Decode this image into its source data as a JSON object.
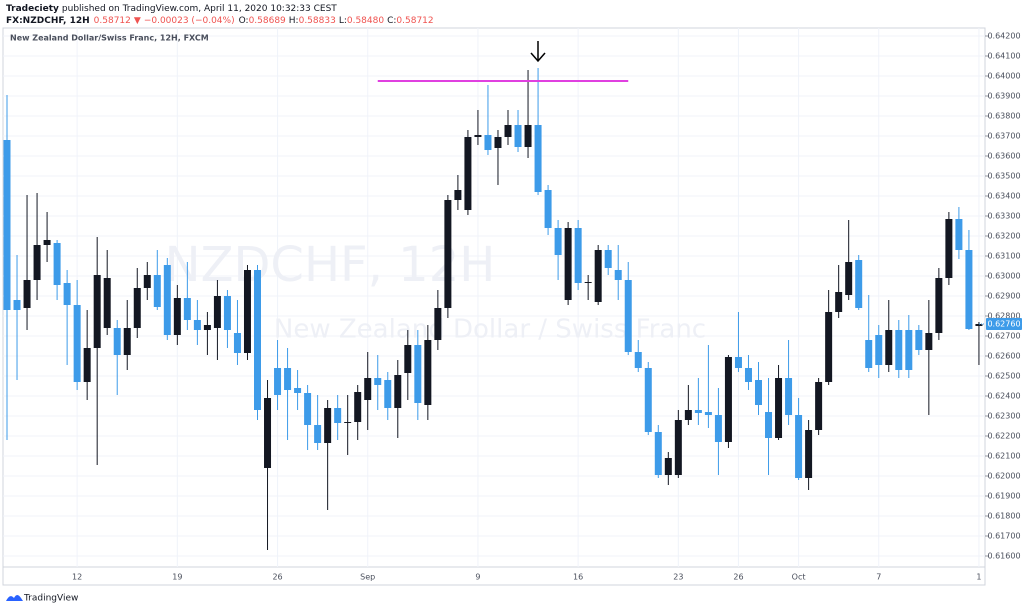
{
  "header": {
    "author": "Tradeciety",
    "published": "published on TradingView.com, April 11, 2020 10:32:33 CEST",
    "symbol": "FX:NZDCHF, 12H",
    "last": "0.58712",
    "arrow": "▼",
    "change": "−0.00023 (−0.04%)",
    "o_label": "O:",
    "o": "0.58689",
    "h_label": "H:",
    "h": "0.58833",
    "l_label": "L:",
    "l": "0.58480",
    "c_label": "C:",
    "c": "0.58712"
  },
  "footer": {
    "brand": "TradingView"
  },
  "chart_data": {
    "type": "candlestick",
    "title": "New Zealand Dollar/Swiss Franc, 12H, FXCM",
    "watermark": "NZDCHF, 12H",
    "watermark_sub": "New Zealand Dollar / Swiss Franc",
    "categories": [
      null,
      null,
      null,
      null,
      null,
      null,
      null,
      "12",
      null,
      null,
      null,
      null,
      null,
      null,
      null,
      null,
      null,
      "19",
      null,
      null,
      null,
      null,
      null,
      null,
      null,
      null,
      null,
      "26",
      null,
      null,
      null,
      null,
      null,
      null,
      null,
      null,
      "Sep",
      null,
      null,
      null,
      null,
      null,
      null,
      null,
      null,
      null,
      null,
      "9",
      null,
      null,
      null,
      null,
      null,
      null,
      null,
      null,
      null,
      "16",
      null,
      null,
      null,
      null,
      null,
      null,
      null,
      null,
      null,
      "23",
      null,
      null,
      null,
      null,
      null,
      "26",
      null,
      null,
      null,
      null,
      null,
      "Oct",
      null,
      null,
      null,
      null,
      null,
      null,
      null,
      "7",
      null,
      null,
      null,
      null,
      null,
      null,
      null,
      null,
      null,
      "1"
    ],
    "open": [
      0.6368,
      0.6288,
      0.6284,
      0.6298,
      0.63155,
      0.63165,
      0.62965,
      0.62855,
      0.6247,
      0.6264,
      0.6274,
      0.6274,
      0.62605,
      0.6274,
      0.6294,
      0.63005,
      0.63055,
      0.62705,
      0.6289,
      0.6278,
      0.6273,
      0.6274,
      0.629,
      0.62715,
      0.62615,
      0.6303,
      0.6204,
      0.6254,
      0.6254,
      0.6244,
      0.62415,
      0.62255,
      0.62165,
      0.6234,
      0.62265,
      0.6227,
      0.6238,
      0.6249,
      0.6248,
      0.6234,
      0.62515,
      0.62655,
      0.62355,
      0.6268,
      0.6284,
      0.6338,
      0.6333,
      0.63695,
      0.63705,
      0.6364,
      0.63695,
      0.63755,
      0.63645,
      0.63755,
      0.6343,
      0.6324,
      0.6288,
      0.6324,
      0.62965,
      0.6287,
      0.6313,
      0.6303,
      0.6298,
      0.6262,
      0.6254,
      0.6222,
      0.62005,
      0.62005,
      0.6228,
      0.6233,
      0.6232,
      0.62305,
      0.6217,
      0.62595,
      0.6254,
      0.6248,
      0.6232,
      0.6219,
      0.6249,
      0.62305,
      0.6199,
      0.6223,
      0.6247,
      0.6282,
      0.62905,
      0.6308,
      0.6268,
      0.62705,
      0.62555,
      0.6273,
      0.6273,
      0.6273,
      0.6263,
      0.62715,
      0.6299,
      0.63285,
      0.6313,
      0.6275
    ],
    "high": [
      0.63905,
      0.63105,
      0.63405,
      0.63415,
      0.6332,
      0.6318,
      0.6303,
      0.6298,
      0.6283,
      0.63195,
      0.6313,
      0.6278,
      0.6288,
      0.6304,
      0.6307,
      0.6313,
      0.6309,
      0.62955,
      0.6307,
      0.6288,
      0.6282,
      0.6298,
      0.6293,
      0.6288,
      0.63055,
      0.63055,
      0.6248,
      0.6268,
      0.6264,
      0.6253,
      0.62455,
      0.62405,
      0.6238,
      0.62405,
      0.62405,
      0.62455,
      0.6262,
      0.62605,
      0.6252,
      0.6258,
      0.6273,
      0.6273,
      0.62755,
      0.6293,
      0.63405,
      0.63505,
      0.6373,
      0.6383,
      0.63955,
      0.6373,
      0.6383,
      0.6383,
      0.6403,
      0.6404,
      0.63455,
      0.6328,
      0.6327,
      0.6328,
      0.63005,
      0.63155,
      0.63155,
      0.63155,
      0.6307,
      0.6268,
      0.6257,
      0.62255,
      0.6212,
      0.6233,
      0.62455,
      0.6249,
      0.62655,
      0.6244,
      0.62605,
      0.6282,
      0.62605,
      0.6257,
      0.6249,
      0.62555,
      0.6268,
      0.6239,
      0.6228,
      0.6249,
      0.6293,
      0.63055,
      0.6328,
      0.63105,
      0.62905,
      0.62755,
      0.6288,
      0.6278,
      0.62805,
      0.62755,
      0.6288,
      0.6304,
      0.6332,
      0.63345,
      0.6323,
      0.6277
    ],
    "low": [
      0.6218,
      0.6248,
      0.6273,
      0.6288,
      0.6307,
      0.6288,
      0.62555,
      0.6243,
      0.6238,
      0.62055,
      0.62705,
      0.62405,
      0.6253,
      0.6269,
      0.6288,
      0.6283,
      0.6268,
      0.62655,
      0.6273,
      0.62655,
      0.62605,
      0.6258,
      0.6264,
      0.62555,
      0.6258,
      0.6228,
      0.6163,
      0.6233,
      0.6218,
      0.6233,
      0.6213,
      0.6213,
      0.6183,
      0.6218,
      0.62105,
      0.6218,
      0.6223,
      0.6233,
      0.6228,
      0.6219,
      0.6238,
      0.6228,
      0.6228,
      0.6263,
      0.6279,
      0.6333,
      0.63305,
      0.63655,
      0.63605,
      0.63455,
      0.63655,
      0.6362,
      0.6359,
      0.63405,
      0.63205,
      0.6298,
      0.62855,
      0.6293,
      0.6288,
      0.62855,
      0.63005,
      0.6288,
      0.62605,
      0.6252,
      0.62205,
      0.6199,
      0.61955,
      0.6199,
      0.62255,
      0.62255,
      0.6224,
      0.62005,
      0.6214,
      0.6252,
      0.6243,
      0.62305,
      0.62005,
      0.6218,
      0.62255,
      0.6198,
      0.6193,
      0.62205,
      0.62455,
      0.6279,
      0.6288,
      0.6283,
      0.6252,
      0.6249,
      0.6252,
      0.6249,
      0.6249,
      0.62605,
      0.62305,
      0.6268,
      0.62955,
      0.63085,
      0.6273,
      0.62555
    ],
    "close": [
      0.6283,
      0.6283,
      0.6298,
      0.63155,
      0.6318,
      0.62955,
      0.62855,
      0.6247,
      0.6264,
      0.63005,
      0.6299,
      0.62605,
      0.6274,
      0.6294,
      0.63005,
      0.62845,
      0.62705,
      0.6289,
      0.6278,
      0.6273,
      0.62755,
      0.629,
      0.6273,
      0.62615,
      0.6303,
      0.6233,
      0.6239,
      0.62405,
      0.6243,
      0.62415,
      0.62255,
      0.62165,
      0.6234,
      0.62265,
      0.6227,
      0.6242,
      0.6249,
      0.62455,
      0.6234,
      0.62505,
      0.62655,
      0.62365,
      0.6268,
      0.6284,
      0.6338,
      0.6343,
      0.63695,
      0.63705,
      0.6363,
      0.63695,
      0.63755,
      0.63645,
      0.63755,
      0.6342,
      0.6324,
      0.63105,
      0.6324,
      0.62965,
      0.6297,
      0.6313,
      0.6304,
      0.6298,
      0.6262,
      0.6254,
      0.6222,
      0.62005,
      0.6209,
      0.6228,
      0.6233,
      0.62315,
      0.62305,
      0.6217,
      0.62595,
      0.6254,
      0.6247,
      0.62355,
      0.6219,
      0.6249,
      0.62305,
      0.6199,
      0.6223,
      0.6247,
      0.6282,
      0.6292,
      0.6307,
      0.6284,
      0.6254,
      0.62555,
      0.6273,
      0.6253,
      0.6253,
      0.6263,
      0.62715,
      0.6299,
      0.63285,
      0.6313,
      0.62735,
      0.6276
    ],
    "up_color": "#131722",
    "down_color": "#3d9be9",
    "ylim": [
      0.61545,
      0.6424
    ],
    "yticks": [
      {
        "value": 0.616,
        "label": "0.61600"
      },
      {
        "value": 0.617,
        "label": "0.61700"
      },
      {
        "value": 0.618,
        "label": "0.61800"
      },
      {
        "value": 0.619,
        "label": "0.61900"
      },
      {
        "value": 0.62,
        "label": "0.62000"
      },
      {
        "value": 0.621,
        "label": "0.62100"
      },
      {
        "value": 0.622,
        "label": "0.62200"
      },
      {
        "value": 0.623,
        "label": "0.62300"
      },
      {
        "value": 0.624,
        "label": "0.62400"
      },
      {
        "value": 0.625,
        "label": "0.62500"
      },
      {
        "value": 0.626,
        "label": "0.62600"
      },
      {
        "value": 0.627,
        "label": "0.62700"
      },
      {
        "value": 0.628,
        "label": "0.62800"
      },
      {
        "value": 0.629,
        "label": "0.62900"
      },
      {
        "value": 0.63,
        "label": "0.63000"
      },
      {
        "value": 0.631,
        "label": "0.63100"
      },
      {
        "value": 0.632,
        "label": "0.63200"
      },
      {
        "value": 0.633,
        "label": "0.63300"
      },
      {
        "value": 0.634,
        "label": "0.63400"
      },
      {
        "value": 0.635,
        "label": "0.63500"
      },
      {
        "value": 0.636,
        "label": "0.63600"
      },
      {
        "value": 0.637,
        "label": "0.63700"
      },
      {
        "value": 0.638,
        "label": "0.63800"
      },
      {
        "value": 0.639,
        "label": "0.63900"
      },
      {
        "value": 0.64,
        "label": "0.64000"
      },
      {
        "value": 0.641,
        "label": "0.64100"
      },
      {
        "value": 0.642,
        "label": "0.64200"
      }
    ],
    "grid": true,
    "last_price": 0.6276,
    "last_price_label": "0.62760",
    "resistance": 0.63975,
    "resistance_color": "#e040e0"
  }
}
